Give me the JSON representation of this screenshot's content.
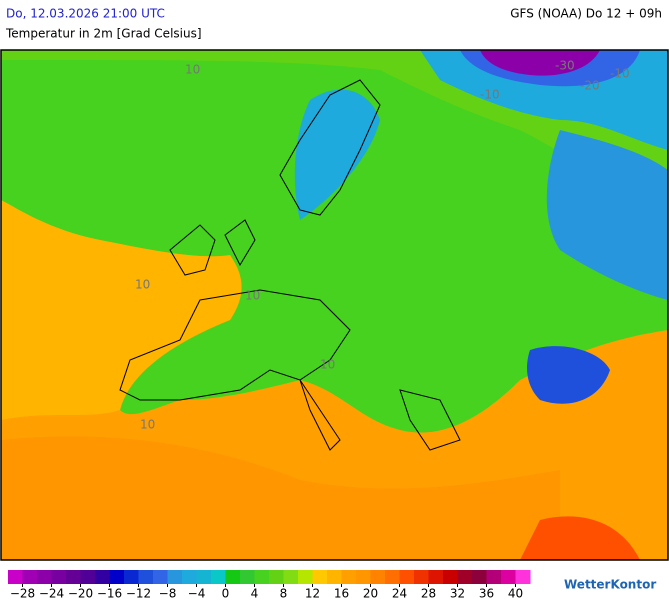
{
  "header": {
    "datetime": "Do, 12.03.2026 21:00 UTC",
    "model": "GFS (NOAA) Do 12 + 09h",
    "subtitle": "Temperatur in 2m [Grad Celsius]"
  },
  "map": {
    "contour_labels": [
      "-30",
      "-20",
      "-10",
      "-10",
      "10",
      "10",
      "10",
      "10",
      "10"
    ]
  },
  "legend": {
    "lim": [
      -30,
      42
    ],
    "colors": [
      "#c800c8",
      "#a000b4",
      "#8c00aa",
      "#7800a0",
      "#640096",
      "#500096",
      "#3200a0",
      "#0000c8",
      "#0a28d2",
      "#1e50dc",
      "#3264e6",
      "#2896dc",
      "#1eaadc",
      "#14b4d2",
      "#0ac8c8",
      "#14c814",
      "#32c832",
      "#46d21e",
      "#64d214",
      "#82dc14",
      "#b4e600",
      "#ffc800",
      "#ffb400",
      "#ffa000",
      "#ff9600",
      "#ff8200",
      "#ff6e00",
      "#ff5000",
      "#f03200",
      "#dc1400",
      "#c80000",
      "#a00028",
      "#8c003c",
      "#b40078",
      "#dc00a0",
      "#ff32dc"
    ],
    "ticks": [
      {
        "value": -28,
        "label": "−28"
      },
      {
        "value": -24,
        "label": "−24"
      },
      {
        "value": -20,
        "label": "−20"
      },
      {
        "value": -16,
        "label": "−16"
      },
      {
        "value": -12,
        "label": "−12"
      },
      {
        "value": -8,
        "label": "−8"
      },
      {
        "value": -4,
        "label": "−4"
      },
      0,
      4,
      8,
      12,
      16,
      20,
      24,
      28,
      32,
      36,
      40
    ]
  },
  "logo": "WetterKontor"
}
